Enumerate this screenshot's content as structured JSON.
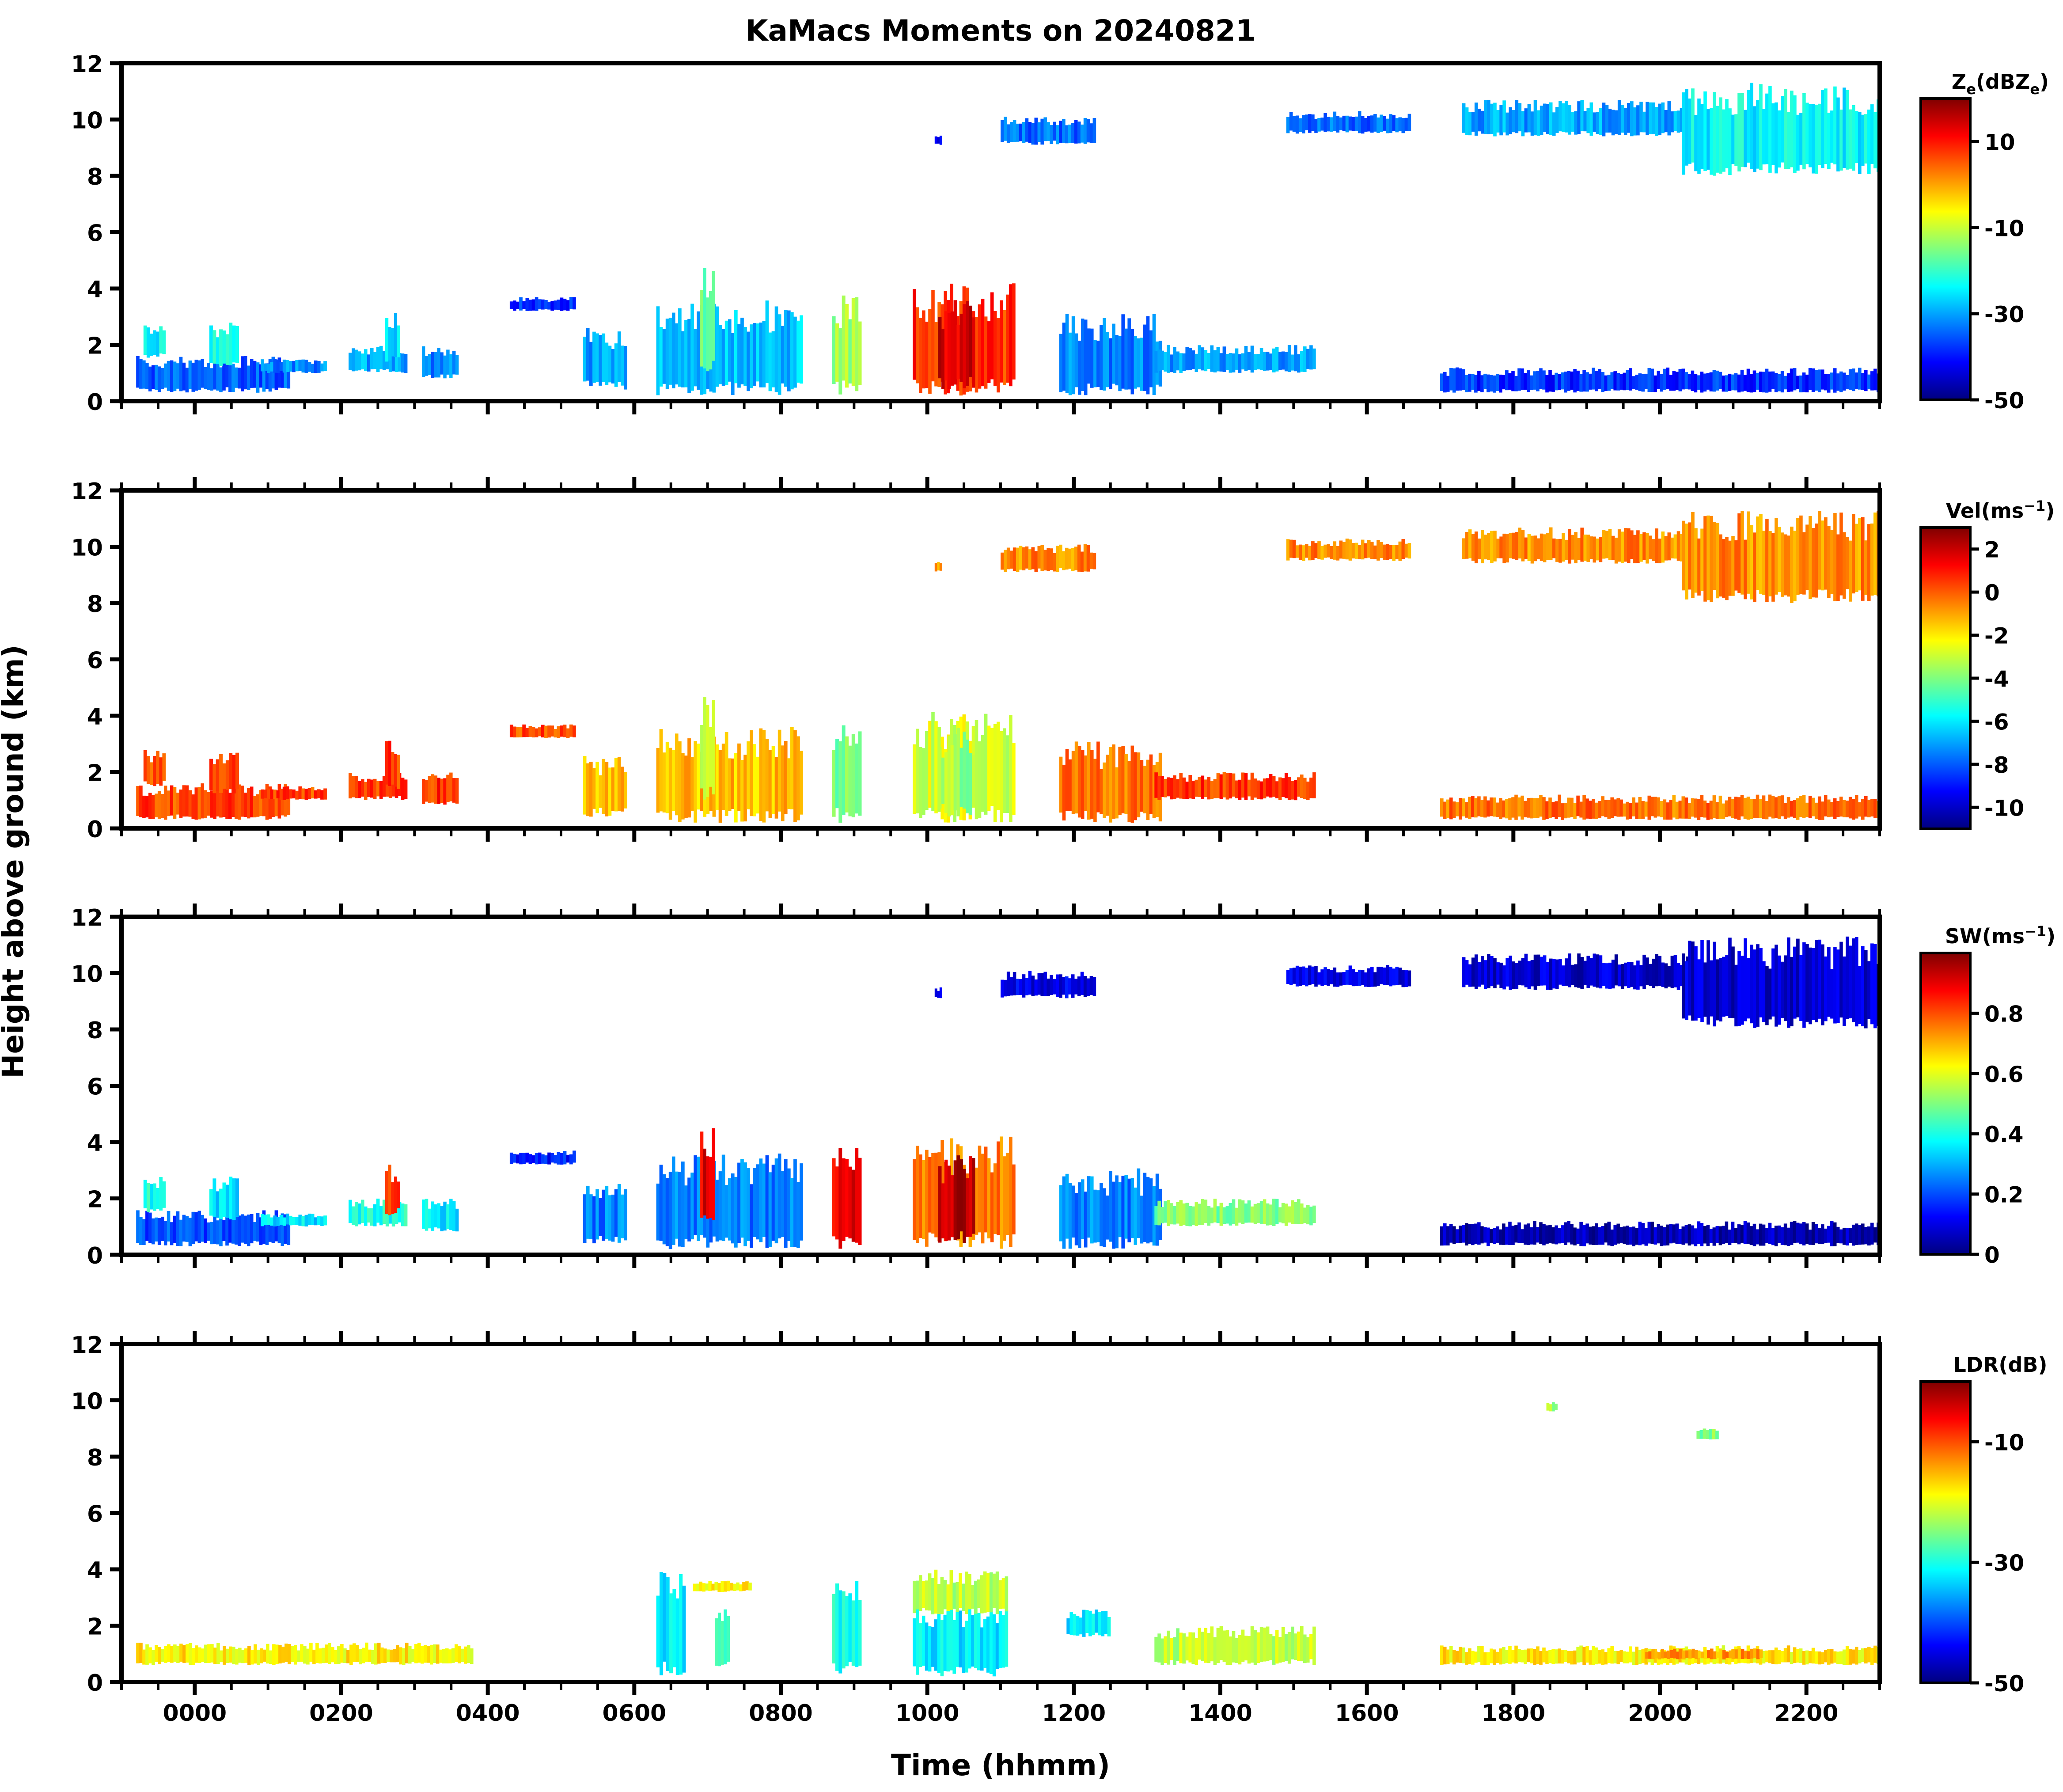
{
  "figure": {
    "title": "KaMacs Moments on 20240821",
    "ylabel": "Height above ground (km)",
    "xlabel": "Time (hhmm)"
  },
  "chart_data": {
    "type": "heatmap",
    "title": "KaMacs Moments on 20240821",
    "xlabel": "Time (hhmm)",
    "ylabel": "Height above ground (km)",
    "x_range_hours": [
      -2.0,
      46.0
    ],
    "x_ticks": [
      {
        "hour": 0,
        "label": "0000"
      },
      {
        "hour": 4,
        "label": "0200"
      },
      {
        "hour": 8,
        "label": "0400"
      },
      {
        "hour": 12,
        "label": "0600"
      },
      {
        "hour": 16,
        "label": "0800"
      },
      {
        "hour": 20,
        "label": "1000"
      },
      {
        "hour": 24,
        "label": "1200"
      },
      {
        "hour": 28,
        "label": "1400"
      },
      {
        "hour": 32,
        "label": "1600"
      },
      {
        "hour": 36,
        "label": "1800"
      },
      {
        "hour": 40,
        "label": "2000"
      },
      {
        "hour": 44,
        "label": "2200"
      }
    ],
    "y_range_km": [
      0,
      12
    ],
    "y_ticks": [
      0,
      2,
      4,
      6,
      8,
      10,
      12
    ],
    "panels": [
      {
        "name": "reflectivity",
        "colorbar_label": "Ze(dBZe)",
        "colorbar_label_parts": [
          "Z",
          "e",
          "(dBZ",
          "e",
          ")"
        ],
        "cmap": [
          "#00007f",
          "#0000ff",
          "#007fff",
          "#00ffff",
          "#7fff7f",
          "#ffff00",
          "#ff7f00",
          "#ff0000",
          "#7f0000"
        ],
        "vmin": -50,
        "vmax": 20,
        "colorbar_ticks": [
          10,
          -10,
          -30,
          -50
        ],
        "echoes": [
          {
            "t": [
              -1.6,
              2.6
            ],
            "h": [
              0.3,
              1.6
            ],
            "v": -35
          },
          {
            "t": [
              -1.4,
              -0.8
            ],
            "h": [
              1.5,
              2.8
            ],
            "v": -25
          },
          {
            "t": [
              0.4,
              1.2
            ],
            "h": [
              1.2,
              2.8
            ],
            "v": -22
          },
          {
            "t": [
              1.8,
              3.6
            ],
            "h": [
              1.0,
              1.5
            ],
            "v": -32
          },
          {
            "t": [
              4.2,
              5.8
            ],
            "h": [
              1.0,
              2.0
            ],
            "v": -30
          },
          {
            "t": [
              5.2,
              5.6
            ],
            "h": [
              1.4,
              3.2
            ],
            "v": -25
          },
          {
            "t": [
              6.2,
              7.2
            ],
            "h": [
              0.8,
              2.0
            ],
            "v": -32
          },
          {
            "t": [
              8.6,
              10.4
            ],
            "h": [
              3.2,
              3.7
            ],
            "v": -38
          },
          {
            "t": [
              10.6,
              11.8
            ],
            "h": [
              0.4,
              2.6
            ],
            "v": -30
          },
          {
            "t": [
              12.6,
              16.6
            ],
            "h": [
              0.2,
              3.6
            ],
            "v": -28
          },
          {
            "t": [
              13.8,
              14.2
            ],
            "h": [
              1.0,
              4.8
            ],
            "v": -15
          },
          {
            "t": [
              17.4,
              18.2
            ],
            "h": [
              0.2,
              3.8
            ],
            "v": -12
          },
          {
            "t": [
              19.6,
              22.4
            ],
            "h": [
              0.2,
              4.2
            ],
            "v": 8
          },
          {
            "t": [
              20.3,
              21.3
            ],
            "h": [
              0.4,
              3.6
            ],
            "v": 14
          },
          {
            "t": [
              23.6,
              26.4
            ],
            "h": [
              0.2,
              3.1
            ],
            "v": -32
          },
          {
            "t": [
              26.2,
              30.6
            ],
            "h": [
              1.0,
              2.0
            ],
            "v": -30
          },
          {
            "t": [
              20.2,
              20.4
            ],
            "h": [
              9.1,
              9.5
            ],
            "v": -40
          },
          {
            "t": [
              22.0,
              24.6
            ],
            "h": [
              9.1,
              10.1
            ],
            "v": -34
          },
          {
            "t": [
              29.8,
              33.2
            ],
            "h": [
              9.5,
              10.3
            ],
            "v": -34
          },
          {
            "t": [
              34.6,
              40.8
            ],
            "h": [
              9.4,
              10.7
            ],
            "v": -30
          },
          {
            "t": [
              40.6,
              46.0
            ],
            "h": [
              8.0,
              11.3
            ],
            "v": -24
          },
          {
            "t": [
              34.0,
              46.0
            ],
            "h": [
              0.3,
              1.2
            ],
            "v": -38
          }
        ]
      },
      {
        "name": "velocity",
        "colorbar_label": "Vel(ms−1)",
        "colorbar_label_parts": [
          "Vel(ms",
          "−1",
          ")"
        ],
        "cmap": [
          "#00007f",
          "#0000ff",
          "#007fff",
          "#00ffff",
          "#7fff7f",
          "#ffff00",
          "#ff7f00",
          "#ff0000",
          "#7f0000"
        ],
        "vmin": -11,
        "vmax": 3,
        "colorbar_ticks": [
          2,
          0,
          -2,
          -4,
          -6,
          -8,
          -10
        ],
        "echoes": [
          {
            "t": [
              -1.6,
              2.6
            ],
            "h": [
              0.3,
              1.6
            ],
            "v": 0.3
          },
          {
            "t": [
              -1.4,
              -0.8
            ],
            "h": [
              1.5,
              2.8
            ],
            "v": 0.2
          },
          {
            "t": [
              0.4,
              1.2
            ],
            "h": [
              1.2,
              2.8
            ],
            "v": 0.4
          },
          {
            "t": [
              1.8,
              3.6
            ],
            "h": [
              1.0,
              1.5
            ],
            "v": 0.3
          },
          {
            "t": [
              4.2,
              5.8
            ],
            "h": [
              1.0,
              2.0
            ],
            "v": 0.5
          },
          {
            "t": [
              5.2,
              5.6
            ],
            "h": [
              1.4,
              3.2
            ],
            "v": 0.5
          },
          {
            "t": [
              6.2,
              7.2
            ],
            "h": [
              0.8,
              2.0
            ],
            "v": 0.6
          },
          {
            "t": [
              8.6,
              10.4
            ],
            "h": [
              3.2,
              3.7
            ],
            "v": 0.2
          },
          {
            "t": [
              10.6,
              11.8
            ],
            "h": [
              0.4,
              2.6
            ],
            "v": -1.2
          },
          {
            "t": [
              12.6,
              16.6
            ],
            "h": [
              0.2,
              3.6
            ],
            "v": -1.4
          },
          {
            "t": [
              13.8,
              14.2
            ],
            "h": [
              1.0,
              4.8
            ],
            "v": -2.6
          },
          {
            "t": [
              17.4,
              18.2
            ],
            "h": [
              0.2,
              3.8
            ],
            "v": -4.2
          },
          {
            "t": [
              19.6,
              22.4
            ],
            "h": [
              0.2,
              4.2
            ],
            "v": -2.8
          },
          {
            "t": [
              20.3,
              21.3
            ],
            "h": [
              0.4,
              3.6
            ],
            "v": -3.6
          },
          {
            "t": [
              23.6,
              26.4
            ],
            "h": [
              0.2,
              3.1
            ],
            "v": -0.4
          },
          {
            "t": [
              26.2,
              30.6
            ],
            "h": [
              1.0,
              2.0
            ],
            "v": 0.5
          },
          {
            "t": [
              20.2,
              20.4
            ],
            "h": [
              9.1,
              9.5
            ],
            "v": -0.6
          },
          {
            "t": [
              22.0,
              24.6
            ],
            "h": [
              9.1,
              10.1
            ],
            "v": -0.6
          },
          {
            "t": [
              29.8,
              33.2
            ],
            "h": [
              9.5,
              10.3
            ],
            "v": -0.6
          },
          {
            "t": [
              34.6,
              40.8
            ],
            "h": [
              9.4,
              10.7
            ],
            "v": -0.7
          },
          {
            "t": [
              40.6,
              46.0
            ],
            "h": [
              8.0,
              11.3
            ],
            "v": -0.7
          },
          {
            "t": [
              34.0,
              46.0
            ],
            "h": [
              0.3,
              1.2
            ],
            "v": -0.3
          }
        ]
      },
      {
        "name": "spectrum-width",
        "colorbar_label": "SW(ms−1)",
        "colorbar_label_parts": [
          "SW(ms",
          "−1",
          ")"
        ],
        "cmap": [
          "#00007f",
          "#0000ff",
          "#007fff",
          "#00ffff",
          "#7fff7f",
          "#ffff00",
          "#ff7f00",
          "#ff0000",
          "#7f0000"
        ],
        "vmin": 0.0,
        "vmax": 1.0,
        "colorbar_ticks": [
          0.8,
          0.6,
          0.4,
          0.2,
          0.0
        ],
        "echoes": [
          {
            "t": [
              -1.6,
              2.6
            ],
            "h": [
              0.3,
              1.6
            ],
            "v": 0.2
          },
          {
            "t": [
              -1.4,
              -0.8
            ],
            "h": [
              1.5,
              2.8
            ],
            "v": 0.4
          },
          {
            "t": [
              0.4,
              1.2
            ],
            "h": [
              1.2,
              2.8
            ],
            "v": 0.35
          },
          {
            "t": [
              1.8,
              3.6
            ],
            "h": [
              1.0,
              1.5
            ],
            "v": 0.35
          },
          {
            "t": [
              4.2,
              5.8
            ],
            "h": [
              1.0,
              2.0
            ],
            "v": 0.4
          },
          {
            "t": [
              5.2,
              5.6
            ],
            "h": [
              1.4,
              3.2
            ],
            "v": 0.8
          },
          {
            "t": [
              6.2,
              7.2
            ],
            "h": [
              0.8,
              2.0
            ],
            "v": 0.35
          },
          {
            "t": [
              8.6,
              10.4
            ],
            "h": [
              3.2,
              3.7
            ],
            "v": 0.15
          },
          {
            "t": [
              10.6,
              11.8
            ],
            "h": [
              0.4,
              2.6
            ],
            "v": 0.25
          },
          {
            "t": [
              12.6,
              16.6
            ],
            "h": [
              0.2,
              3.6
            ],
            "v": 0.25
          },
          {
            "t": [
              13.8,
              14.2
            ],
            "h": [
              1.0,
              4.8
            ],
            "v": 0.9
          },
          {
            "t": [
              17.4,
              18.2
            ],
            "h": [
              0.2,
              3.8
            ],
            "v": 0.9
          },
          {
            "t": [
              19.6,
              22.4
            ],
            "h": [
              0.2,
              4.2
            ],
            "v": 0.75
          },
          {
            "t": [
              20.3,
              21.3
            ],
            "h": [
              0.4,
              3.6
            ],
            "v": 0.95
          },
          {
            "t": [
              23.6,
              26.4
            ],
            "h": [
              0.2,
              3.1
            ],
            "v": 0.25
          },
          {
            "t": [
              26.2,
              30.6
            ],
            "h": [
              1.0,
              2.0
            ],
            "v": 0.5
          },
          {
            "t": [
              20.2,
              20.4
            ],
            "h": [
              9.1,
              9.5
            ],
            "v": 0.12
          },
          {
            "t": [
              22.0,
              24.6
            ],
            "h": [
              9.1,
              10.1
            ],
            "v": 0.1
          },
          {
            "t": [
              29.8,
              33.2
            ],
            "h": [
              9.5,
              10.3
            ],
            "v": 0.1
          },
          {
            "t": [
              34.6,
              40.8
            ],
            "h": [
              9.4,
              10.7
            ],
            "v": 0.08
          },
          {
            "t": [
              40.6,
              46.0
            ],
            "h": [
              8.0,
              11.3
            ],
            "v": 0.08
          },
          {
            "t": [
              34.0,
              46.0
            ],
            "h": [
              0.3,
              1.2
            ],
            "v": 0.05
          }
        ]
      },
      {
        "name": "ldr",
        "colorbar_label": "LDR(dB)",
        "colorbar_label_parts": [
          "LDR(dB)"
        ],
        "cmap": [
          "#00007f",
          "#0000ff",
          "#007fff",
          "#00ffff",
          "#7fff7f",
          "#ffff00",
          "#ff7f00",
          "#ff0000",
          "#7f0000"
        ],
        "vmin": -50,
        "vmax": 0,
        "colorbar_ticks": [
          -10,
          -30,
          -50
        ],
        "echoes": [
          {
            "t": [
              12.6,
              13.4
            ],
            "h": [
              0.2,
              4.0
            ],
            "v": -32
          },
          {
            "t": [
              13.6,
              15.2
            ],
            "h": [
              3.2,
              3.6
            ],
            "v": -18
          },
          {
            "t": [
              14.2,
              14.6
            ],
            "h": [
              0.4,
              2.8
            ],
            "v": -30
          },
          {
            "t": [
              17.4,
              18.2
            ],
            "h": [
              0.3,
              3.6
            ],
            "v": -30
          },
          {
            "t": [
              19.6,
              22.2
            ],
            "h": [
              0.2,
              2.8
            ],
            "v": -32
          },
          {
            "t": [
              19.6,
              22.2
            ],
            "h": [
              2.4,
              4.0
            ],
            "v": -22
          },
          {
            "t": [
              23.8,
              25.0
            ],
            "h": [
              1.6,
              2.6
            ],
            "v": -32
          },
          {
            "t": [
              -1.6,
              7.6
            ],
            "h": [
              0.6,
              1.4
            ],
            "v": -18
          },
          {
            "t": [
              26.2,
              30.6
            ],
            "h": [
              0.6,
              2.0
            ],
            "v": -22
          },
          {
            "t": [
              34.0,
              46.0
            ],
            "h": [
              0.6,
              1.3
            ],
            "v": -18
          },
          {
            "t": [
              39.6,
              42.8
            ],
            "h": [
              0.8,
              1.2
            ],
            "v": -14
          },
          {
            "t": [
              36.9,
              37.2
            ],
            "h": [
              9.6,
              10.0
            ],
            "v": -24
          },
          {
            "t": [
              41.0,
              41.6
            ],
            "h": [
              8.6,
              9.0
            ],
            "v": -25
          }
        ]
      }
    ]
  }
}
